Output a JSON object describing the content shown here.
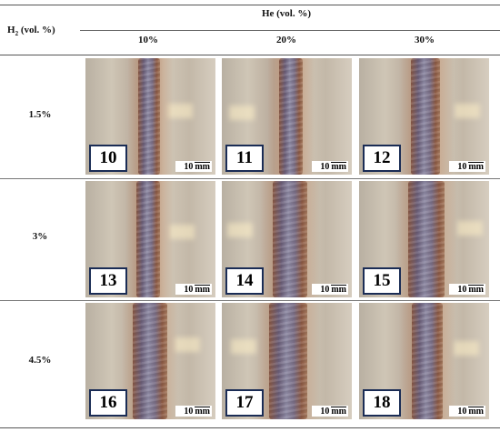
{
  "table": {
    "column_group_header": "He (vol. %)",
    "row_header_label": {
      "main": "H",
      "sub": "2",
      "rest": " (vol. %)"
    },
    "columns": [
      "10%",
      "20%",
      "30%"
    ],
    "rows": [
      {
        "label": "1.5%",
        "samples": [
          "10",
          "11",
          "12"
        ]
      },
      {
        "label": "3%",
        "samples": [
          "13",
          "14",
          "15"
        ]
      },
      {
        "label": "4.5%",
        "samples": [
          "16",
          "17",
          "18"
        ]
      }
    ],
    "scale_bar": {
      "value": "10",
      "unit": "mm"
    }
  }
}
